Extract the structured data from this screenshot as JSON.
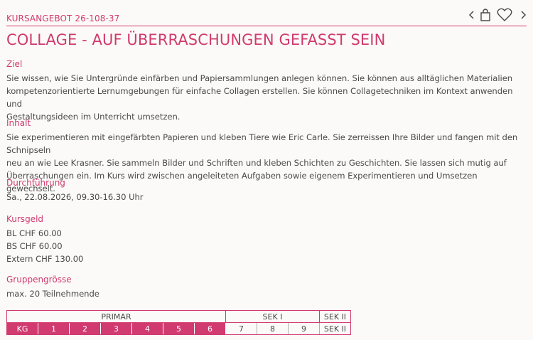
{
  "header": {
    "course_code": "KURSANGEBOT 26-108-37",
    "icons": [
      "chevron-left-icon",
      "bag-icon",
      "heart-icon",
      "chevron-right-icon"
    ]
  },
  "title": "COLLAGE - AUF ÜBERRASCHUNGEN GEFASST SEIN",
  "sections": {
    "ziel": {
      "heading": "Ziel",
      "body": "Sie wissen, wie Sie Untergründe einfärben und Papiersammlungen anlegen können. Sie können aus alltäglichen Materialien\nkompetenzorientierte Lernumgebungen für einfache Collagen erstellen. Sie können Collagetechniken im Kontext anwenden und\nGestaltungsideen im Unterricht umsetzen."
    },
    "inhalt": {
      "heading": "Inhalt",
      "body": "Sie experimentieren mit eingefärbten Papieren und kleben Tiere wie Eric Carle. Sie zerreissen Ihre Bilder und fangen mit den Schnipseln\nneu an wie Lee Krasner. Sie sammeln Bilder und Schriften und kleben Schichten zu Geschichten. Sie lassen sich mutig auf\nÜberraschungen ein. Im Kurs wird zwischen angeleiteten Aufgaben sowie eigenem Experimentieren und Umsetzen gewechselt."
    },
    "durchfuehrung": {
      "heading": "Durchführung",
      "body": "Sa., 22.08.2026, 09.30-16.30 Uhr"
    },
    "kursgeld": {
      "heading": "Kursgeld",
      "body": "BL CHF 60.00\nBS CHF 60.00\nExtern CHF 130.00"
    },
    "gruppengroesse": {
      "heading": "Gruppengrösse",
      "body": "max. 20 Teilnehmende"
    }
  },
  "levels": {
    "groups": [
      {
        "label": "PRIMAR",
        "span": 7
      },
      {
        "label": "SEK I",
        "span": 3
      },
      {
        "label": "SEK II",
        "span": 1
      }
    ],
    "cells": [
      {
        "label": "KG",
        "active": true
      },
      {
        "label": "1",
        "active": true
      },
      {
        "label": "2",
        "active": true
      },
      {
        "label": "3",
        "active": true
      },
      {
        "label": "4",
        "active": true
      },
      {
        "label": "5",
        "active": true
      },
      {
        "label": "6",
        "active": true
      },
      {
        "label": "7",
        "active": false
      },
      {
        "label": "8",
        "active": false
      },
      {
        "label": "9",
        "active": false
      },
      {
        "label": "SEK II",
        "active": false
      }
    ],
    "colors": {
      "accent": "#d13a6f"
    }
  }
}
